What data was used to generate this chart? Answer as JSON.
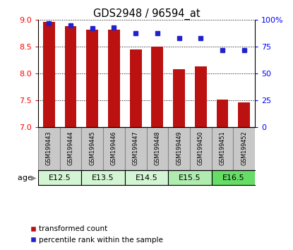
{
  "title": "GDS2948 / 96594_at",
  "samples": [
    "GSM199443",
    "GSM199444",
    "GSM199445",
    "GSM199446",
    "GSM199447",
    "GSM199448",
    "GSM199449",
    "GSM199450",
    "GSM199451",
    "GSM199452"
  ],
  "bar_values": [
    8.97,
    8.88,
    8.82,
    8.82,
    8.45,
    8.5,
    8.09,
    8.13,
    7.52,
    7.47
  ],
  "percentile_values": [
    97,
    95,
    92,
    93,
    88,
    88,
    83,
    83,
    72,
    72
  ],
  "ylim_left": [
    7,
    9
  ],
  "ylim_right": [
    0,
    100
  ],
  "yticks_left": [
    7,
    7.5,
    8,
    8.5,
    9
  ],
  "yticks_right": [
    0,
    25,
    50,
    75,
    100
  ],
  "bar_color": "#bb1111",
  "dot_color": "#2222cc",
  "bar_bottom": 7,
  "age_groups": [
    {
      "label": "E12.5",
      "start": 0,
      "end": 1,
      "color": "#d4f5d4"
    },
    {
      "label": "E13.5",
      "start": 2,
      "end": 3,
      "color": "#d4f5d4"
    },
    {
      "label": "E14.5",
      "start": 4,
      "end": 5,
      "color": "#d4f5d4"
    },
    {
      "label": "E15.5",
      "start": 6,
      "end": 7,
      "color": "#b0ebb0"
    },
    {
      "label": "E16.5",
      "start": 8,
      "end": 9,
      "color": "#66dd66"
    }
  ],
  "sample_box_color": "#c8c8c8",
  "sample_box_edge": "#888888",
  "legend_bar_label": "transformed count",
  "legend_dot_label": "percentile rank within the sample"
}
